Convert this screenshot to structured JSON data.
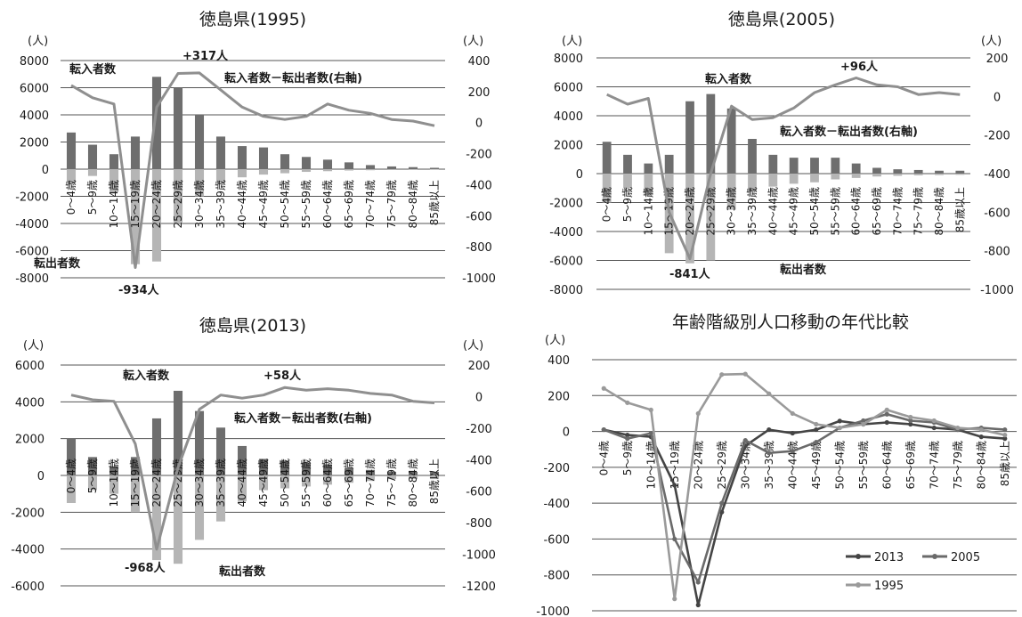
{
  "chart_data": [
    {
      "type": "bar",
      "title": "徳島県(1995)",
      "y_unit_left": "(人)",
      "y_unit_right": "(人)",
      "yticks_left": [
        "8000",
        "6000",
        "4000",
        "2000",
        "0",
        "-2000",
        "-4000",
        "-6000",
        "-8000"
      ],
      "yticks_right": [
        "400",
        "200",
        "0",
        "-200",
        "-400",
        "-600",
        "-800",
        "-1000"
      ],
      "ylim_left": [
        -8000,
        8000
      ],
      "ylim_right": [
        -1000,
        400
      ],
      "categories": [
        "0～4歳",
        "5～9歳",
        "10～14歳",
        "15～19歳",
        "20～24歳",
        "25～29歳",
        "30～34歳",
        "35～39歳",
        "40～44歳",
        "45～49歳",
        "50～54歳",
        "55～59歳",
        "60～64歳",
        "65～69歳",
        "70～74歳",
        "75～79歳",
        "80～84歳",
        "85歳以上"
      ],
      "series": [
        {
          "name": "転入者数",
          "axis": "left",
          "values": [
            2700,
            1800,
            1100,
            2400,
            6800,
            6000,
            4000,
            2400,
            1700,
            1600,
            1100,
            900,
            700,
            500,
            300,
            200,
            150,
            100
          ]
        },
        {
          "name": "転出者数",
          "axis": "left",
          "values": [
            -1000,
            -500,
            -1700,
            -7000,
            -6800,
            -4000,
            -2000,
            -1000,
            -600,
            -400,
            -300,
            -200,
            -150,
            -100,
            -80,
            -60,
            -50,
            -40
          ]
        },
        {
          "name": "転入者数－転出者数(右軸)",
          "axis": "right",
          "values": [
            240,
            160,
            120,
            -934,
            100,
            317,
            320,
            210,
            100,
            40,
            20,
            40,
            120,
            80,
            60,
            20,
            10,
            -20
          ]
        }
      ],
      "annotations": [
        "+317人",
        "-934人",
        "転入者数",
        "転出者数",
        "転入者数－転出者数(右軸)"
      ]
    },
    {
      "type": "bar",
      "title": "徳島県(2005)",
      "y_unit_left": "(人)",
      "y_unit_right": "(人)",
      "yticks_left": [
        "8000",
        "6000",
        "4000",
        "2000",
        "0",
        "-2000",
        "-4000",
        "-6000",
        "-8000"
      ],
      "yticks_right": [
        "200",
        "0",
        "-200",
        "-400",
        "-600",
        "-800",
        "-1000"
      ],
      "ylim_left": [
        -8000,
        8000
      ],
      "ylim_right": [
        -1000,
        200
      ],
      "categories": [
        "0～4歳",
        "5～9歳",
        "10～14歳",
        "15～19歳",
        "20～24歳",
        "25～29歳",
        "30～34歳",
        "35～39歳",
        "40～44歳",
        "45～49歳",
        "50～54歳",
        "55～59歳",
        "60～64歳",
        "65～69歳",
        "70～74歳",
        "75～79歳",
        "80～84歳",
        "85歳以上"
      ],
      "series": [
        {
          "name": "転入者数",
          "axis": "left",
          "values": [
            2200,
            1300,
            700,
            1300,
            5000,
            5500,
            4500,
            2400,
            1300,
            1100,
            1100,
            1100,
            700,
            400,
            300,
            250,
            200,
            200
          ]
        },
        {
          "name": "転出者数",
          "axis": "left",
          "values": [
            -2000,
            -1000,
            -1500,
            -5500,
            -6200,
            -6000,
            -2500,
            -1200,
            -900,
            -700,
            -600,
            -400,
            -300,
            -200,
            -150,
            -120,
            -100,
            -80
          ]
        },
        {
          "name": "転入者数－転出者数(右軸)",
          "axis": "right",
          "values": [
            10,
            -40,
            -10,
            -600,
            -841,
            -400,
            -50,
            -120,
            -110,
            -60,
            20,
            60,
            96,
            60,
            50,
            10,
            20,
            10
          ]
        }
      ],
      "annotations": [
        "+96人",
        "-841人",
        "転入者数",
        "転出者数",
        "転入者数－転出者数(右軸)"
      ]
    },
    {
      "type": "bar",
      "title": "徳島県(2013)",
      "y_unit_left": "(人)",
      "y_unit_right": "(人)",
      "yticks_left": [
        "6000",
        "4000",
        "2000",
        "0",
        "-2000",
        "-4000",
        "-6000"
      ],
      "yticks_right": [
        "200",
        "0",
        "-200",
        "-400",
        "-600",
        "-800",
        "-1000",
        "-1200"
      ],
      "ylim_left": [
        -6000,
        6000
      ],
      "ylim_right": [
        -1200,
        200
      ],
      "categories": [
        "0～4歳",
        "5～9歳",
        "10～14歳",
        "15～19歳",
        "20～24歳",
        "25～29歳",
        "30～34歳",
        "35～39歳",
        "40～44歳",
        "45～49歳",
        "50～54歳",
        "55～59歳",
        "60～64歳",
        "65～69歳",
        "70～74歳",
        "75～79歳",
        "80～84歳",
        "85歳以上"
      ],
      "series": [
        {
          "name": "転入者数",
          "axis": "left",
          "values": [
            2000,
            1000,
            500,
            1000,
            3100,
            4600,
            3500,
            2600,
            1600,
            900,
            800,
            700,
            600,
            400,
            300,
            200,
            200,
            200
          ]
        },
        {
          "name": "転出者数",
          "axis": "left",
          "values": [
            -1500,
            -800,
            -1000,
            -2000,
            -4600,
            -4800,
            -3500,
            -2500,
            -1400,
            -800,
            -700,
            -600,
            -500,
            -400,
            -300,
            -200,
            -200,
            -200
          ]
        },
        {
          "name": "転入者数－転出者数(右軸)",
          "axis": "right",
          "values": [
            10,
            -20,
            -30,
            -300,
            -968,
            -450,
            -80,
            10,
            -10,
            10,
            58,
            40,
            50,
            40,
            20,
            10,
            -30,
            -40
          ]
        }
      ],
      "annotations": [
        "+58人",
        "-968人",
        "転入者数",
        "転出者数",
        "転入者数－転出者数(右軸)"
      ]
    },
    {
      "type": "line",
      "title": "年齢階級別人口移動の年代比較",
      "y_unit": "(人)",
      "yticks": [
        "400",
        "200",
        "0",
        "-200",
        "-400",
        "-600",
        "-800",
        "-1000"
      ],
      "ylim": [
        -1000,
        400
      ],
      "categories": [
        "0～4歳",
        "5～9歳",
        "10～14歳",
        "15～19歳",
        "20～24歳",
        "25～29歳",
        "30～34歳",
        "35～39歳",
        "40～44歳",
        "45～49歳",
        "50～54歳",
        "55～59歳",
        "60～64歳",
        "65～69歳",
        "70～74歳",
        "75～79歳",
        "80～84歳",
        "85歳以上"
      ],
      "series": [
        {
          "name": "2013",
          "values": [
            10,
            -20,
            -30,
            -300,
            -968,
            -450,
            -80,
            10,
            -10,
            10,
            58,
            40,
            50,
            40,
            20,
            10,
            -30,
            -40
          ]
        },
        {
          "name": "2005",
          "values": [
            10,
            -40,
            -10,
            -600,
            -841,
            -400,
            -50,
            -120,
            -110,
            -60,
            20,
            60,
            96,
            60,
            50,
            10,
            20,
            10
          ]
        },
        {
          "name": "1995",
          "values": [
            240,
            160,
            120,
            -934,
            100,
            317,
            320,
            210,
            100,
            40,
            20,
            40,
            120,
            80,
            60,
            20,
            10,
            -20
          ]
        }
      ],
      "legend": [
        "2013",
        "2005",
        "1995"
      ],
      "legend_position": "bottom-right"
    }
  ],
  "colors": {
    "bar_in": "#6e6e6e",
    "bar_out": "#b5b5b5",
    "net_line": "#8f8f8f",
    "series_2013": "#444444",
    "series_2005": "#6a6a6a",
    "series_1995": "#9a9a9a"
  }
}
